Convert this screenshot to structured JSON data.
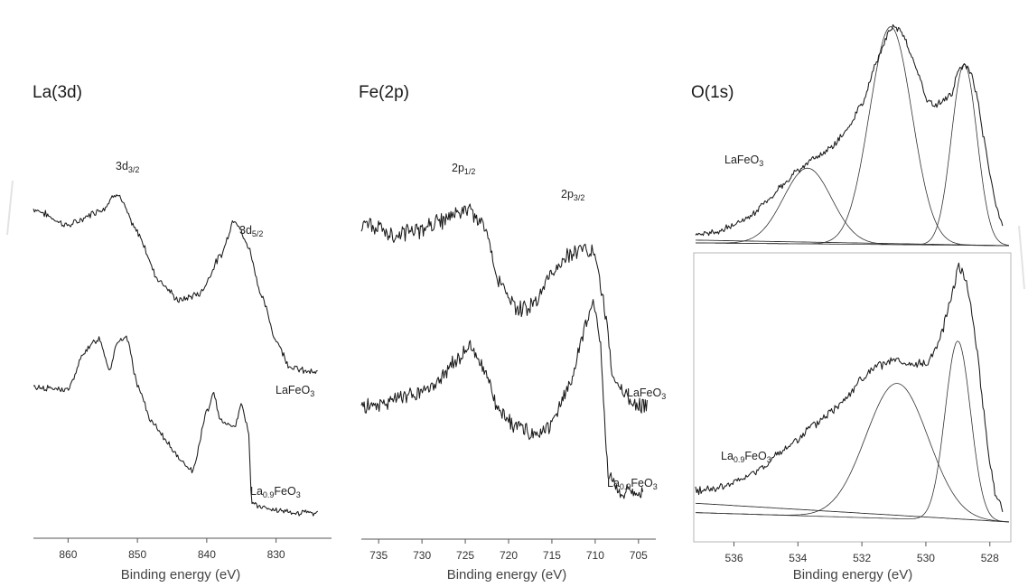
{
  "chart_data": [
    {
      "type": "line",
      "title": "La(3d)",
      "xlabel": "Binding energy (eV)",
      "ylabel": "",
      "xlim": [
        865,
        822
      ],
      "x_reversed": true,
      "xticks": [
        860,
        850,
        840,
        830
      ],
      "annotations": [
        {
          "text": "3d",
          "sub": "3/2",
          "x": 853.5
        },
        {
          "text": "3d",
          "sub": "5/2",
          "x": 833
        }
      ],
      "series": [
        {
          "name": "LaFeO",
          "name_sub": "3",
          "x": [
            865,
            860,
            855,
            853,
            850,
            847,
            844,
            841,
            838,
            836,
            834,
            832,
            830,
            828,
            826,
            824
          ],
          "y": [
            0.86,
            0.79,
            0.86,
            0.93,
            0.76,
            0.56,
            0.47,
            0.5,
            0.66,
            0.82,
            0.7,
            0.48,
            0.3,
            0.19,
            0.17,
            0.16
          ]
        },
        {
          "name": "La",
          "name_sub": "0.9",
          "name_tail": "FeO",
          "name_tail_sub": "3",
          "x": [
            865,
            860,
            857.5,
            855.5,
            854,
            853,
            851.5,
            850,
            848,
            846,
            844,
            842,
            840,
            839,
            838,
            837,
            836,
            835,
            834,
            833.5,
            832,
            830,
            828,
            826,
            824
          ],
          "y": [
            0.51,
            0.5,
            0.66,
            0.71,
            0.58,
            0.69,
            0.71,
            0.52,
            0.37,
            0.3,
            0.22,
            0.17,
            0.41,
            0.48,
            0.38,
            0.36,
            0.35,
            0.44,
            0.34,
            0.04,
            0.02,
            0.01,
            0.0,
            0.0,
            0.0
          ]
        }
      ]
    },
    {
      "type": "line",
      "title": "Fe(2p)",
      "xlabel": "Binding energy (eV)",
      "ylabel": "",
      "xlim": [
        737,
        703
      ],
      "x_reversed": true,
      "xticks": [
        735,
        730,
        725,
        720,
        715,
        710,
        705
      ],
      "annotations": [
        {
          "text": "2p",
          "sub": "1/2",
          "x": 724.5
        },
        {
          "text": "2p",
          "sub": "3/2",
          "x": 711
        }
      ],
      "series": [
        {
          "name": "LaFeO",
          "name_sub": "3",
          "x": [
            737,
            733,
            730,
            727,
            725,
            723,
            721,
            719,
            717,
            715,
            713,
            711,
            710,
            709,
            708,
            707,
            706,
            705,
            704
          ],
          "y": [
            0.78,
            0.74,
            0.76,
            0.8,
            0.84,
            0.78,
            0.55,
            0.44,
            0.47,
            0.58,
            0.66,
            0.69,
            0.66,
            0.46,
            0.2,
            0.13,
            0.09,
            0.07,
            0.06
          ]
        },
        {
          "name": "La",
          "name_sub": "0.9",
          "name_tail": "FeO",
          "name_tail_sub": "3",
          "x": [
            737,
            734,
            731,
            728,
            726,
            724.5,
            723,
            721,
            719,
            717,
            715,
            713,
            711,
            710.2,
            709.5,
            708.5,
            707.5,
            706,
            704.5
          ],
          "y": [
            0.33,
            0.35,
            0.37,
            0.42,
            0.5,
            0.55,
            0.47,
            0.31,
            0.26,
            0.23,
            0.27,
            0.4,
            0.63,
            0.71,
            0.58,
            0.1,
            0.03,
            0.02,
            0.02
          ]
        }
      ]
    },
    {
      "type": "line",
      "title": "O(1s)",
      "xlabel": "Binding energy (eV)",
      "ylabel": "",
      "xlim": [
        537.2,
        527.4
      ],
      "x_reversed": true,
      "xticks": [
        536,
        534,
        532,
        530,
        528
      ],
      "panels": [
        {
          "label": "LaFeO",
          "label_sub": "3",
          "measured": {
            "x": [
              537.2,
              536.5,
              536,
              535.5,
              535,
              534.5,
              534,
              533.5,
              533,
              532.5,
              532,
              531.5,
              531.2,
              531,
              530.7,
              530.5,
              530.2,
              530,
              529.7,
              529.5,
              529.2,
              529,
              528.8,
              528.6,
              528.4,
              528.2,
              528,
              527.8,
              527.6
            ],
            "y": [
              0.04,
              0.06,
              0.09,
              0.13,
              0.19,
              0.26,
              0.33,
              0.38,
              0.42,
              0.5,
              0.62,
              0.81,
              0.92,
              0.96,
              0.92,
              0.84,
              0.74,
              0.64,
              0.61,
              0.63,
              0.66,
              0.76,
              0.79,
              0.76,
              0.65,
              0.48,
              0.32,
              0.17,
              0.08
            ]
          },
          "components": [
            {
              "center": 533.7,
              "height": 0.33,
              "width": 1.7
            },
            {
              "center": 531.1,
              "height": 0.95,
              "width": 1.5
            },
            {
              "center": 528.8,
              "height": 0.79,
              "width": 0.9
            }
          ]
        },
        {
          "label": "La",
          "label_sub": "0.9",
          "label_tail": "FeO",
          "label_tail_sub": "3",
          "measured": {
            "x": [
              537.2,
              536.5,
              536,
              535.5,
              535,
              534.5,
              534,
              533.5,
              533,
              532.5,
              532,
              531.5,
              531,
              530.5,
              530,
              529.7,
              529.5,
              529.3,
              529.1,
              529,
              528.8,
              528.6,
              528.4,
              528.2,
              528,
              527.8,
              527.6
            ],
            "y": [
              0.12,
              0.13,
              0.15,
              0.18,
              0.22,
              0.27,
              0.32,
              0.37,
              0.42,
              0.48,
              0.55,
              0.6,
              0.62,
              0.6,
              0.61,
              0.66,
              0.73,
              0.82,
              0.92,
              0.99,
              0.95,
              0.84,
              0.66,
              0.44,
              0.22,
              0.1,
              0.04
            ]
          },
          "components": [
            {
              "center": 530.9,
              "height": 0.52,
              "width": 2.2
            },
            {
              "center": 529.0,
              "height": 0.69,
              "width": 0.9
            }
          ]
        }
      ]
    }
  ]
}
